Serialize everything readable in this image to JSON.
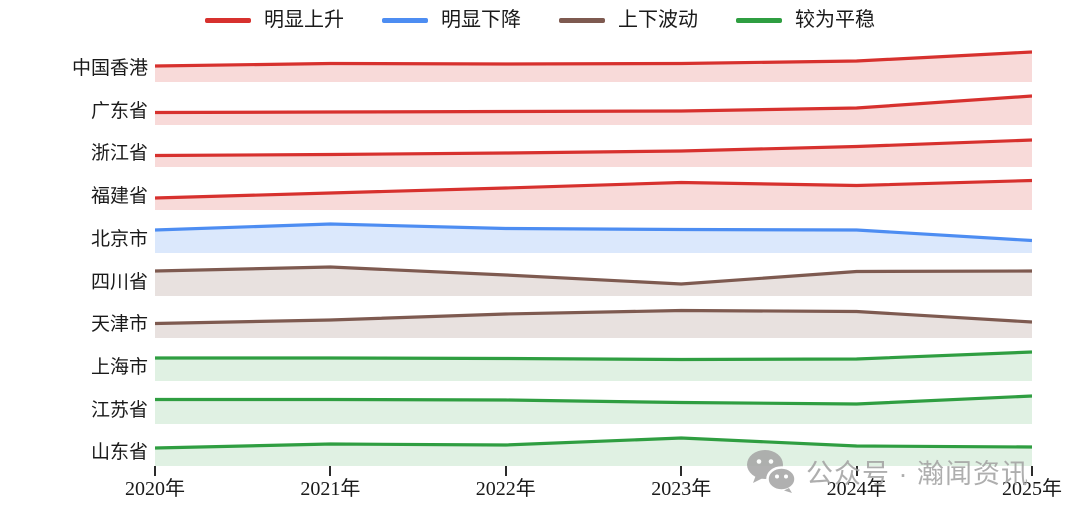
{
  "legend": {
    "items": [
      {
        "label": "明显上升",
        "trend": "rising"
      },
      {
        "label": "明显下降",
        "trend": "falling"
      },
      {
        "label": "上下波动",
        "trend": "fluctuating"
      },
      {
        "label": "较为平稳",
        "trend": "stable"
      }
    ]
  },
  "chart_data": {
    "type": "area",
    "subtype": "ridgeline",
    "x_labels": [
      "2020年",
      "2021年",
      "2022年",
      "2023年",
      "2024年",
      "2025年"
    ],
    "note": "No numeric y-axis shown; values are relative line heights of each region band (px above its own baseline), read from the pixels.",
    "trend_styles": {
      "rising": {
        "line": "#d7312e",
        "fill": "rgba(215,49,46,0.18)"
      },
      "falling": {
        "line": "#4d8df2",
        "fill": "rgba(77,141,242,0.20)"
      },
      "fluctuating": {
        "line": "#7e5a50",
        "fill": "rgba(126,90,80,0.18)"
      },
      "stable": {
        "line": "#2f9e41",
        "fill": "rgba(47,158,65,0.15)"
      }
    },
    "series": [
      {
        "name": "中国香港",
        "trend": "rising",
        "values": [
          16,
          18.5,
          18,
          18.5,
          21,
          30
        ]
      },
      {
        "name": "广东省",
        "trend": "rising",
        "values": [
          12.5,
          13,
          13.5,
          14,
          17,
          29
        ]
      },
      {
        "name": "浙江省",
        "trend": "rising",
        "values": [
          11.5,
          12.5,
          14,
          16,
          20.5,
          27
        ]
      },
      {
        "name": "福建省",
        "trend": "rising",
        "values": [
          12,
          17,
          22,
          27.5,
          24.5,
          29.5
        ]
      },
      {
        "name": "北京市",
        "trend": "falling",
        "values": [
          23,
          29,
          24.5,
          23.5,
          23,
          12.5
        ]
      },
      {
        "name": "四川省",
        "trend": "fluctuating",
        "values": [
          25,
          29,
          21,
          12,
          24.5,
          25
        ]
      },
      {
        "name": "天津市",
        "trend": "fluctuating",
        "values": [
          14.5,
          18,
          24,
          27.5,
          26.5,
          16
        ]
      },
      {
        "name": "上海市",
        "trend": "stable",
        "values": [
          23,
          23,
          22.5,
          21.5,
          22,
          29
        ]
      },
      {
        "name": "江苏省",
        "trend": "stable",
        "values": [
          24.5,
          24.5,
          24,
          21.5,
          20,
          28
        ]
      },
      {
        "name": "山东省",
        "trend": "stable",
        "values": [
          18,
          22,
          21,
          28,
          20,
          19
        ]
      }
    ]
  },
  "watermark": {
    "text": "公众号 · 瀚闻资讯",
    "icon": "wechat-icon"
  }
}
